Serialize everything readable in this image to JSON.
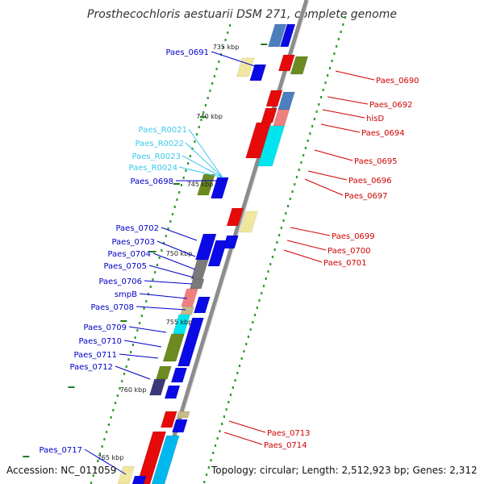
{
  "title": "Prosthecochloris aestuarii DSM 271, complete genome",
  "footer": {
    "accession": "Accession: NC_011059",
    "topology": "Topology: circular; Length: 2,512,923 bp; Genes: 2,312"
  },
  "colors": {
    "backbone": "#8c8c8c",
    "cds_forward": "#0a0ae6",
    "cds_reverse": "#e60a0a",
    "label_left": "#0000c8",
    "label_right": "#d00000",
    "label_rna": "#3cc8f0",
    "tick": "#1f7a1f",
    "dots": "#2e9b2e"
  },
  "ticks": [
    {
      "label": "735 kbp"
    },
    {
      "label": "740 kbp"
    },
    {
      "label": "745 kbp"
    },
    {
      "label": "750 kbp"
    },
    {
      "label": "755 kbp"
    },
    {
      "label": "760 kbp"
    },
    {
      "label": "765 kbp"
    }
  ],
  "labels_left": [
    {
      "text": "Paes_0691",
      "color": "#0000c8"
    },
    {
      "text": "Paes_R0021",
      "color": "#3cc8f0"
    },
    {
      "text": "Paes_R0022",
      "color": "#3cc8f0"
    },
    {
      "text": "Paes_R0023",
      "color": "#3cc8f0"
    },
    {
      "text": "Paes_R0024",
      "color": "#3cc8f0"
    },
    {
      "text": "Paes_0698",
      "color": "#0000c8"
    },
    {
      "text": "Paes_0702",
      "color": "#0000c8"
    },
    {
      "text": "Paes_0703",
      "color": "#0000c8"
    },
    {
      "text": "Paes_0704",
      "color": "#0000c8"
    },
    {
      "text": "Paes_0705",
      "color": "#0000c8"
    },
    {
      "text": "Paes_0706",
      "color": "#0000c8"
    },
    {
      "text": "smpB",
      "color": "#0000c8"
    },
    {
      "text": "Paes_0708",
      "color": "#0000c8"
    },
    {
      "text": "Paes_0709",
      "color": "#0000c8"
    },
    {
      "text": "Paes_0710",
      "color": "#0000c8"
    },
    {
      "text": "Paes_0711",
      "color": "#0000c8"
    },
    {
      "text": "Paes_0712",
      "color": "#0000c8"
    },
    {
      "text": "Paes_0717",
      "color": "#0000c8"
    }
  ],
  "labels_right": [
    {
      "text": "Paes_0690",
      "color": "#d00000"
    },
    {
      "text": "Paes_0692",
      "color": "#d00000"
    },
    {
      "text": "hisD",
      "color": "#d00000"
    },
    {
      "text": "Paes_0694",
      "color": "#d00000"
    },
    {
      "text": "Paes_0695",
      "color": "#d00000"
    },
    {
      "text": "Paes_0696",
      "color": "#d00000"
    },
    {
      "text": "Paes_0697",
      "color": "#d00000"
    },
    {
      "text": "Paes_0699",
      "color": "#d00000"
    },
    {
      "text": "Paes_0700",
      "color": "#d00000"
    },
    {
      "text": "Paes_0701",
      "color": "#d00000"
    },
    {
      "text": "Paes_0713",
      "color": "#d00000"
    },
    {
      "text": "Paes_0714",
      "color": "#d00000"
    }
  ]
}
